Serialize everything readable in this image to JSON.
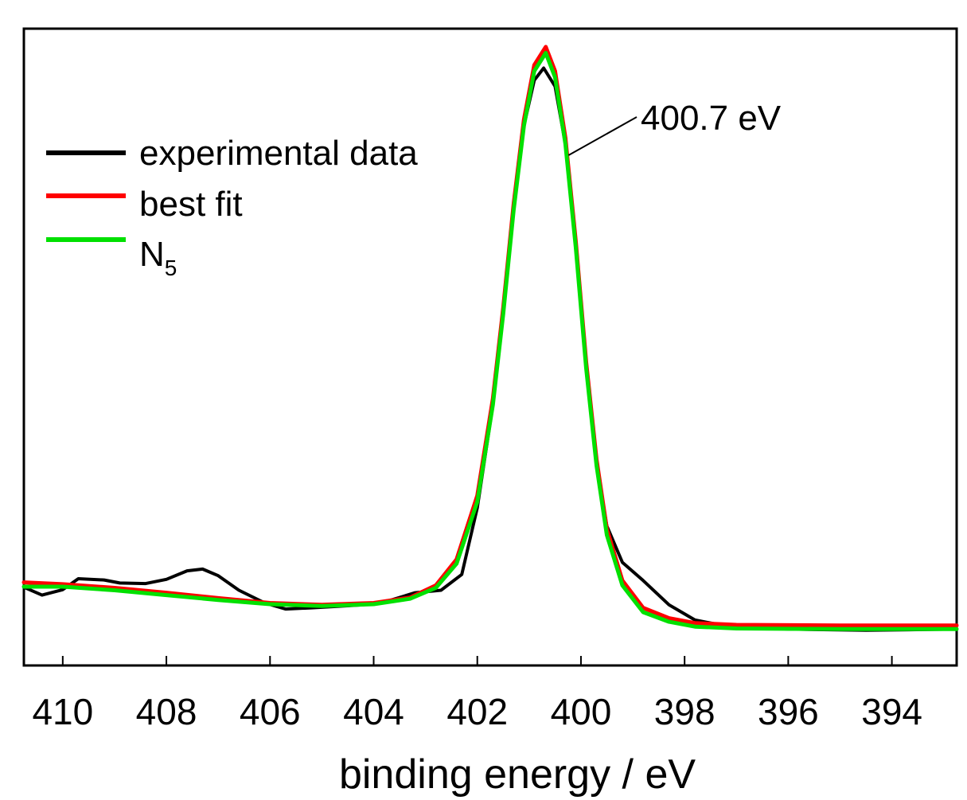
{
  "chart_data": {
    "type": "line",
    "title": "",
    "xlabel": "binding energy / eV",
    "ylabel": "",
    "xlim": [
      410.75,
      392.75
    ],
    "ylim": [
      0,
      1.05
    ],
    "x_reversed": true,
    "grid": false,
    "legend_position": "top-left",
    "xticks": [
      410,
      408,
      406,
      404,
      402,
      400,
      398,
      396,
      394
    ],
    "annotation": {
      "text": "400.7 eV",
      "x": 400.7
    },
    "legend": [
      {
        "name_main": "experimental data",
        "name_sub": "",
        "color": "#000000"
      },
      {
        "name_main": "best fit",
        "name_sub": "",
        "color": "#ff0000"
      },
      {
        "name_main": "N",
        "name_sub": "5",
        "color": "#00e000"
      }
    ],
    "series": [
      {
        "name": "experimental data",
        "color": "#000000",
        "points": [
          [
            410.75,
            0.129
          ],
          [
            410.4,
            0.116
          ],
          [
            410.0,
            0.125
          ],
          [
            409.7,
            0.143
          ],
          [
            409.2,
            0.141
          ],
          [
            408.9,
            0.136
          ],
          [
            408.4,
            0.135
          ],
          [
            408.0,
            0.142
          ],
          [
            407.6,
            0.156
          ],
          [
            407.3,
            0.159
          ],
          [
            407.0,
            0.148
          ],
          [
            406.6,
            0.124
          ],
          [
            406.1,
            0.103
          ],
          [
            405.7,
            0.093
          ],
          [
            405.2,
            0.095
          ],
          [
            404.8,
            0.097
          ],
          [
            404.2,
            0.1
          ],
          [
            403.7,
            0.107
          ],
          [
            403.2,
            0.12
          ],
          [
            402.7,
            0.124
          ],
          [
            402.3,
            0.15
          ],
          [
            402.0,
            0.26
          ],
          [
            401.7,
            0.43
          ],
          [
            401.5,
            0.58
          ],
          [
            401.3,
            0.76
          ],
          [
            401.1,
            0.89
          ],
          [
            400.9,
            0.965
          ],
          [
            400.72,
            0.985
          ],
          [
            400.5,
            0.955
          ],
          [
            400.3,
            0.86
          ],
          [
            400.1,
            0.7
          ],
          [
            399.9,
            0.5
          ],
          [
            399.7,
            0.33
          ],
          [
            399.5,
            0.23
          ],
          [
            399.2,
            0.17
          ],
          [
            398.8,
            0.14
          ],
          [
            398.3,
            0.1
          ],
          [
            397.8,
            0.075
          ],
          [
            397.2,
            0.065
          ],
          [
            396.0,
            0.06
          ],
          [
            394.5,
            0.058
          ],
          [
            392.75,
            0.06
          ]
        ]
      },
      {
        "name": "best fit",
        "color": "#ff0000",
        "points": [
          [
            410.75,
            0.137
          ],
          [
            410.0,
            0.134
          ],
          [
            409.0,
            0.128
          ],
          [
            408.0,
            0.12
          ],
          [
            407.0,
            0.111
          ],
          [
            406.0,
            0.103
          ],
          [
            405.0,
            0.1
          ],
          [
            404.0,
            0.103
          ],
          [
            403.3,
            0.112
          ],
          [
            402.8,
            0.132
          ],
          [
            402.4,
            0.175
          ],
          [
            402.0,
            0.28
          ],
          [
            401.7,
            0.44
          ],
          [
            401.5,
            0.59
          ],
          [
            401.3,
            0.76
          ],
          [
            401.1,
            0.9
          ],
          [
            400.9,
            0.99
          ],
          [
            400.68,
            1.02
          ],
          [
            400.5,
            0.98
          ],
          [
            400.3,
            0.87
          ],
          [
            400.1,
            0.7
          ],
          [
            399.9,
            0.5
          ],
          [
            399.7,
            0.34
          ],
          [
            399.5,
            0.225
          ],
          [
            399.2,
            0.14
          ],
          [
            398.8,
            0.095
          ],
          [
            398.3,
            0.078
          ],
          [
            397.8,
            0.07
          ],
          [
            397.0,
            0.067
          ],
          [
            395.0,
            0.066
          ],
          [
            392.75,
            0.066
          ]
        ]
      },
      {
        "name": "N5",
        "color": "#00e000",
        "points": [
          [
            410.75,
            0.13
          ],
          [
            410.0,
            0.13
          ],
          [
            409.0,
            0.124
          ],
          [
            408.0,
            0.116
          ],
          [
            407.0,
            0.108
          ],
          [
            406.0,
            0.101
          ],
          [
            405.0,
            0.098
          ],
          [
            404.0,
            0.101
          ],
          [
            403.3,
            0.11
          ],
          [
            402.8,
            0.128
          ],
          [
            402.4,
            0.168
          ],
          [
            402.0,
            0.27
          ],
          [
            401.7,
            0.43
          ],
          [
            401.5,
            0.58
          ],
          [
            401.3,
            0.75
          ],
          [
            401.1,
            0.89
          ],
          [
            400.9,
            0.98
          ],
          [
            400.68,
            1.01
          ],
          [
            400.5,
            0.97
          ],
          [
            400.3,
            0.86
          ],
          [
            400.1,
            0.69
          ],
          [
            399.9,
            0.49
          ],
          [
            399.7,
            0.33
          ],
          [
            399.5,
            0.215
          ],
          [
            399.2,
            0.132
          ],
          [
            398.8,
            0.088
          ],
          [
            398.3,
            0.072
          ],
          [
            397.8,
            0.064
          ],
          [
            397.0,
            0.061
          ],
          [
            395.0,
            0.06
          ],
          [
            392.75,
            0.06
          ]
        ]
      }
    ]
  }
}
